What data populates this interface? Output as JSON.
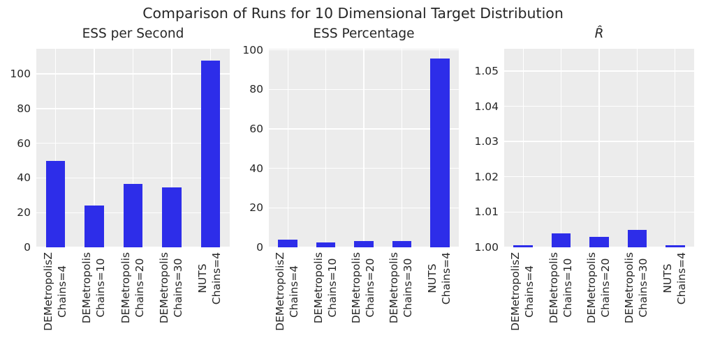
{
  "figure_title": "Comparison of Runs for 10 Dimensional Target Distribution",
  "colors": {
    "bar": "#2d2de9",
    "axes_background": "#ececec",
    "gridline": "#ffffff",
    "text": "#262626",
    "figure_background": "#ffffff"
  },
  "chart_data": [
    {
      "type": "bar",
      "title": "ESS per Second",
      "categories": [
        "DEMetropolisZ\nChains=4",
        "DEMetropolis\nChains=10",
        "DEMetropolis\nChains=20",
        "DEMetropolis\nChains=30",
        "NUTS\nChains=4"
      ],
      "values": [
        49.8,
        24.0,
        36.4,
        34.5,
        107.8
      ],
      "ylim": [
        0,
        114.5
      ],
      "yticks": [
        0,
        20,
        40,
        60,
        80,
        100
      ],
      "ytick_labels": [
        "0",
        "20",
        "40",
        "60",
        "80",
        "100"
      ],
      "xlabel": "",
      "ylabel": "",
      "grid": true,
      "legend": "none",
      "title_italic": false
    },
    {
      "type": "bar",
      "title": "ESS Percentage",
      "categories": [
        "DEMetropolisZ\nChains=4",
        "DEMetropolis\nChains=10",
        "DEMetropolis\nChains=20",
        "DEMetropolis\nChains=30",
        "NUTS\nChains=4"
      ],
      "values": [
        3.8,
        2.4,
        3.3,
        3.1,
        95.8
      ],
      "ylim": [
        0,
        100.6
      ],
      "yticks": [
        0,
        20,
        40,
        60,
        80,
        100
      ],
      "ytick_labels": [
        "0",
        "20",
        "40",
        "60",
        "80",
        "100"
      ],
      "xlabel": "",
      "ylabel": "",
      "grid": true,
      "legend": "none",
      "title_italic": false
    },
    {
      "type": "bar",
      "title": "R̂",
      "categories": [
        "DEMetropolisZ\nChains=4",
        "DEMetropolis\nChains=10",
        "DEMetropolis\nChains=20",
        "DEMetropolis\nChains=30",
        "NUTS\nChains=4"
      ],
      "values": [
        1.0005,
        1.004,
        1.003,
        1.005,
        1.0005
      ],
      "ylim": [
        1.0,
        1.0563
      ],
      "yticks": [
        1.0,
        1.01,
        1.02,
        1.03,
        1.04,
        1.05
      ],
      "ytick_labels": [
        "1.00",
        "1.01",
        "1.02",
        "1.03",
        "1.04",
        "1.05"
      ],
      "xlabel": "",
      "ylabel": "",
      "grid": true,
      "legend": "none",
      "title_italic": true
    }
  ]
}
